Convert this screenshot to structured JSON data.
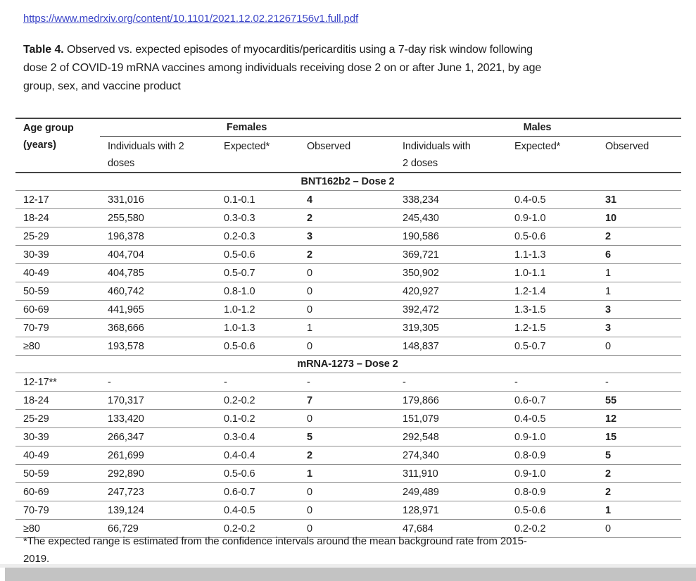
{
  "link": {
    "text": "https://www.medrxiv.org/content/10.1101/2021.12.02.21267156v1.full.pdf"
  },
  "caption": {
    "label": "Table 4.",
    "text": "Observed vs. expected episodes of myocarditis/pericarditis using a 7-day risk window following\ndose 2 of COVID-19 mRNA vaccines among individuals receiving dose 2 on or after June 1, 2021, by age\ngroup, sex, and vaccine product"
  },
  "table": {
    "age_header": "Age group\n(years)",
    "groups": {
      "females": "Females",
      "males": "Males"
    },
    "subheaders": {
      "females": [
        "Individuals with 2\ndoses",
        "Expected*",
        "Observed"
      ],
      "males": [
        "Individuals with\n2 doses",
        "Expected*",
        "Observed"
      ]
    },
    "sections": [
      {
        "title": "BNT162b2 – Dose 2",
        "rows": [
          {
            "age": "12-17",
            "f_doses": "331,016",
            "f_exp": "0.1-0.1",
            "f_obs": "4",
            "f_obs_bold": true,
            "m_doses": "338,234",
            "m_exp": "0.4-0.5",
            "m_obs": "31",
            "m_obs_bold": true
          },
          {
            "age": "18-24",
            "f_doses": "255,580",
            "f_exp": "0.3-0.3",
            "f_obs": "2",
            "f_obs_bold": true,
            "m_doses": "245,430",
            "m_exp": "0.9-1.0",
            "m_obs": "10",
            "m_obs_bold": true
          },
          {
            "age": "25-29",
            "f_doses": "196,378",
            "f_exp": "0.2-0.3",
            "f_obs": "3",
            "f_obs_bold": true,
            "m_doses": "190,586",
            "m_exp": "0.5-0.6",
            "m_obs": "2",
            "m_obs_bold": true
          },
          {
            "age": "30-39",
            "f_doses": "404,704",
            "f_exp": "0.5-0.6",
            "f_obs": "2",
            "f_obs_bold": true,
            "m_doses": "369,721",
            "m_exp": "1.1-1.3",
            "m_obs": "6",
            "m_obs_bold": true
          },
          {
            "age": "40-49",
            "f_doses": "404,785",
            "f_exp": "0.5-0.7",
            "f_obs": "0",
            "f_obs_bold": false,
            "m_doses": "350,902",
            "m_exp": "1.0-1.1",
            "m_obs": "1",
            "m_obs_bold": false
          },
          {
            "age": "50-59",
            "f_doses": "460,742",
            "f_exp": "0.8-1.0",
            "f_obs": "0",
            "f_obs_bold": false,
            "m_doses": "420,927",
            "m_exp": "1.2-1.4",
            "m_obs": "1",
            "m_obs_bold": false
          },
          {
            "age": "60-69",
            "f_doses": "441,965",
            "f_exp": "1.0-1.2",
            "f_obs": "0",
            "f_obs_bold": false,
            "m_doses": "392,472",
            "m_exp": "1.3-1.5",
            "m_obs": "3",
            "m_obs_bold": true
          },
          {
            "age": "70-79",
            "f_doses": "368,666",
            "f_exp": "1.0-1.3",
            "f_obs": "1",
            "f_obs_bold": false,
            "m_doses": "319,305",
            "m_exp": "1.2-1.5",
            "m_obs": "3",
            "m_obs_bold": true
          },
          {
            "age": "≥80",
            "f_doses": "193,578",
            "f_exp": "0.5-0.6",
            "f_obs": "0",
            "f_obs_bold": false,
            "m_doses": "148,837",
            "m_exp": "0.5-0.7",
            "m_obs": "0",
            "m_obs_bold": false
          }
        ]
      },
      {
        "title": "mRNA-1273 – Dose 2",
        "rows": [
          {
            "age": "12-17**",
            "f_doses": "-",
            "f_exp": "-",
            "f_obs": "-",
            "f_obs_bold": false,
            "m_doses": "-",
            "m_exp": "-",
            "m_obs": "-",
            "m_obs_bold": false
          },
          {
            "age": "18-24",
            "f_doses": "170,317",
            "f_exp": "0.2-0.2",
            "f_obs": "7",
            "f_obs_bold": true,
            "m_doses": "179,866",
            "m_exp": "0.6-0.7",
            "m_obs": "55",
            "m_obs_bold": true
          },
          {
            "age": "25-29",
            "f_doses": "133,420",
            "f_exp": "0.1-0.2",
            "f_obs": "0",
            "f_obs_bold": false,
            "m_doses": "151,079",
            "m_exp": "0.4-0.5",
            "m_obs": "12",
            "m_obs_bold": true
          },
          {
            "age": "30-39",
            "f_doses": "266,347",
            "f_exp": "0.3-0.4",
            "f_obs": "5",
            "f_obs_bold": true,
            "m_doses": "292,548",
            "m_exp": "0.9-1.0",
            "m_obs": "15",
            "m_obs_bold": true
          },
          {
            "age": "40-49",
            "f_doses": "261,699",
            "f_exp": "0.4-0.4",
            "f_obs": "2",
            "f_obs_bold": true,
            "m_doses": "274,340",
            "m_exp": "0.8-0.9",
            "m_obs": "5",
            "m_obs_bold": true
          },
          {
            "age": "50-59",
            "f_doses": "292,890",
            "f_exp": "0.5-0.6",
            "f_obs": "1",
            "f_obs_bold": true,
            "m_doses": "311,910",
            "m_exp": "0.9-1.0",
            "m_obs": "2",
            "m_obs_bold": true
          },
          {
            "age": "60-69",
            "f_doses": "247,723",
            "f_exp": "0.6-0.7",
            "f_obs": "0",
            "f_obs_bold": false,
            "m_doses": "249,489",
            "m_exp": "0.8-0.9",
            "m_obs": "2",
            "m_obs_bold": true
          },
          {
            "age": "70-79",
            "f_doses": "139,124",
            "f_exp": "0.4-0.5",
            "f_obs": "0",
            "f_obs_bold": false,
            "m_doses": "128,971",
            "m_exp": "0.5-0.6",
            "m_obs": "1",
            "m_obs_bold": true
          },
          {
            "age": "≥80",
            "f_doses": "66,729",
            "f_exp": "0.2-0.2",
            "f_obs": "0",
            "f_obs_bold": false,
            "m_doses": "47,684",
            "m_exp": "0.2-0.2",
            "m_obs": "0",
            "m_obs_bold": false
          }
        ]
      }
    ]
  },
  "footnote": "*The expected range is estimated from the confidence intervals around the mean background rate from 2015-\n2019.",
  "colors": {
    "link_blue": "#3c46c8",
    "text": "#1e1e1e",
    "rule_dark": "#444444",
    "rule_light": "#8f8f8f",
    "scrollbar_thumb": "#c3c3c3",
    "scrollbar_track": "#ededed"
  }
}
